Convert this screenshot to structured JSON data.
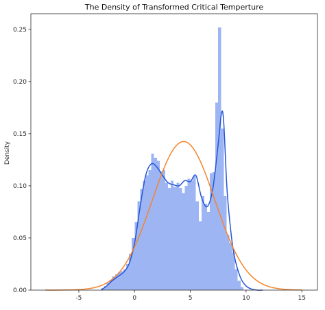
{
  "chart_data": {
    "type": "bar",
    "title": "The Density of Transformed Critical Temperture",
    "xlabel": "",
    "ylabel": "Density",
    "xlim": [
      -9.3,
      16.4
    ],
    "ylim": [
      0,
      0.265
    ],
    "xticks": [
      -5,
      0,
      5,
      10,
      15
    ],
    "yticks": [
      0.0,
      0.05,
      0.1,
      0.15,
      0.2,
      0.25
    ],
    "ytick_labels": [
      "0.00",
      "0.05",
      "0.10",
      "0.15",
      "0.20",
      "0.25"
    ],
    "grid": false,
    "histogram": {
      "bin_edges": [
        -3.0,
        -2.75,
        -2.5,
        -2.25,
        -2.0,
        -1.75,
        -1.5,
        -1.25,
        -1.0,
        -0.75,
        -0.5,
        -0.25,
        0.0,
        0.25,
        0.5,
        0.75,
        1.0,
        1.25,
        1.5,
        1.75,
        2.0,
        2.25,
        2.5,
        2.75,
        3.0,
        3.25,
        3.5,
        3.75,
        4.0,
        4.25,
        4.5,
        4.75,
        5.0,
        5.25,
        5.5,
        5.75,
        6.0,
        6.25,
        6.5,
        6.75,
        7.0,
        7.25,
        7.5,
        7.75,
        8.0,
        8.25,
        8.5,
        8.75,
        9.0,
        9.25,
        9.5,
        9.75
      ],
      "values": [
        0.002,
        0.004,
        0.007,
        0.01,
        0.013,
        0.015,
        0.017,
        0.018,
        0.02,
        0.025,
        0.035,
        0.05,
        0.065,
        0.085,
        0.097,
        0.105,
        0.11,
        0.115,
        0.131,
        0.127,
        0.124,
        0.114,
        0.115,
        0.103,
        0.098,
        0.105,
        0.099,
        0.103,
        0.098,
        0.093,
        0.1,
        0.107,
        0.105,
        0.109,
        0.085,
        0.066,
        0.09,
        0.083,
        0.075,
        0.112,
        0.113,
        0.18,
        0.252,
        0.155,
        0.09,
        0.053,
        0.045,
        0.036,
        0.02,
        0.009,
        0.003
      ],
      "color": "#9eb5f3"
    },
    "series": [
      {
        "color": "#2456d6",
        "x": [
          -3.0,
          -2.5,
          -2.0,
          -1.5,
          -1.0,
          -0.5,
          0.0,
          0.5,
          1.0,
          1.5,
          2.0,
          2.5,
          3.0,
          3.5,
          4.0,
          4.5,
          5.0,
          5.5,
          6.0,
          6.5,
          7.0,
          7.5,
          7.8,
          8.0,
          8.3,
          8.7,
          9.0,
          9.5,
          10.0,
          10.5,
          11.0,
          11.5
        ],
        "y": [
          0.0,
          0.004,
          0.009,
          0.013,
          0.017,
          0.025,
          0.045,
          0.08,
          0.11,
          0.121,
          0.118,
          0.11,
          0.103,
          0.101,
          0.1,
          0.105,
          0.104,
          0.11,
          0.089,
          0.08,
          0.096,
          0.14,
          0.17,
          0.16,
          0.095,
          0.05,
          0.03,
          0.012,
          0.004,
          0.001,
          0.0,
          0.0
        ]
      },
      {
        "color": "#f5832a",
        "distribution": "normal",
        "mean": 4.4,
        "sd": 2.8,
        "x_range": [
          -8.0,
          15.0
        ]
      }
    ]
  }
}
